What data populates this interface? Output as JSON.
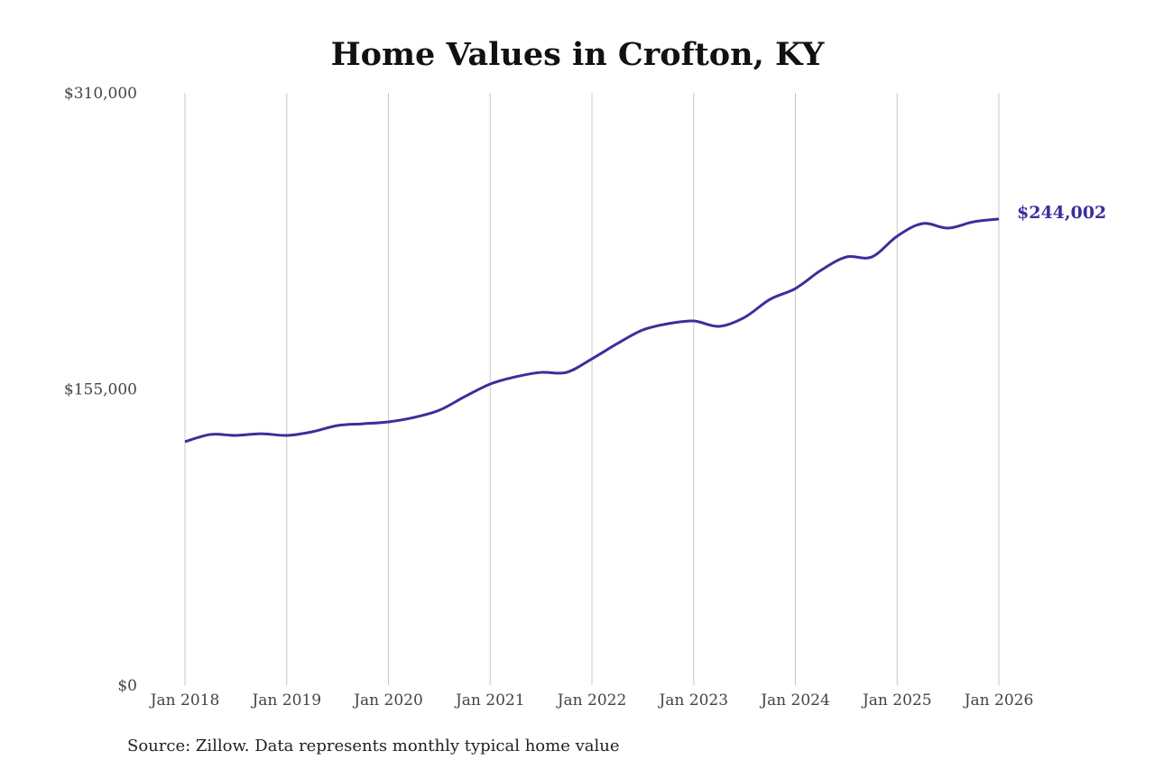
{
  "chart_data": {
    "type": "line",
    "title": "Home Values in Crofton, KY",
    "xlabel": "",
    "ylabel": "",
    "source": "Source: Zillow. Data represents monthly typical home value",
    "ylim": [
      0,
      310000
    ],
    "yticks": [
      0,
      155000,
      310000
    ],
    "ytick_labels": [
      "$0",
      "$155,000",
      "$310,000"
    ],
    "xticks": [
      "2018-01",
      "2019-01",
      "2020-01",
      "2021-01",
      "2022-01",
      "2023-01",
      "2024-01",
      "2025-01",
      "2026-01"
    ],
    "xtick_labels": [
      "Jan 2018",
      "Jan 2019",
      "Jan 2020",
      "Jan 2021",
      "Jan 2022",
      "Jan 2023",
      "Jan 2024",
      "Jan 2025",
      "Jan 2026"
    ],
    "grid": "vertical",
    "line_color": "#3a2f9a",
    "end_label": "$244,002",
    "series": [
      {
        "x": [
          "2018-01",
          "2018-04",
          "2018-07",
          "2018-10",
          "2019-01",
          "2019-04",
          "2019-07",
          "2019-10",
          "2020-01",
          "2020-04",
          "2020-07",
          "2020-10",
          "2021-01",
          "2021-04",
          "2021-07",
          "2021-10",
          "2022-01",
          "2022-04",
          "2022-07",
          "2022-10",
          "2023-01",
          "2023-04",
          "2023-07",
          "2023-10",
          "2024-01",
          "2024-04",
          "2024-07",
          "2024-10",
          "2025-01",
          "2025-04",
          "2025-07",
          "2025-10",
          "2026-01"
        ],
        "values": [
          127400,
          131200,
          130700,
          131600,
          130700,
          132600,
          135900,
          136800,
          137800,
          140100,
          143900,
          151000,
          157600,
          161400,
          163700,
          163700,
          170800,
          178800,
          185900,
          189200,
          190600,
          187800,
          192500,
          201900,
          207600,
          217100,
          224100,
          224100,
          235000,
          241600,
          239200,
          242500,
          244002
        ]
      }
    ]
  }
}
